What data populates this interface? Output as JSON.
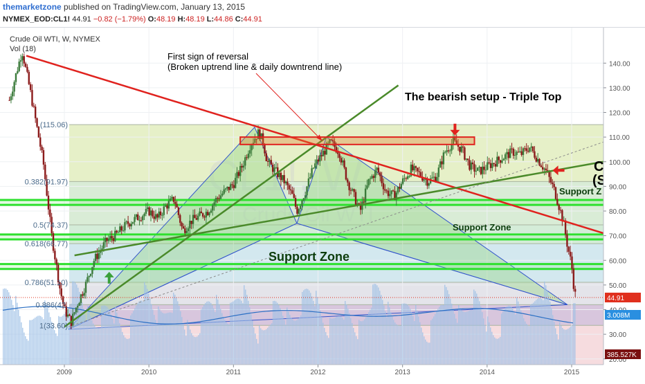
{
  "header": {
    "publisher": "themarketzone",
    "published_text": "published on TradingView.com, January 13, 2015",
    "symbol": "NYMEX_EOD:CL1!",
    "last": "44.91",
    "change": "−0.82 (−1.79%)",
    "open_label": "O:",
    "open": "48.19",
    "high_label": "H:",
    "high": "48.19",
    "low_label": "L:",
    "low": "44.86",
    "close_label": "C:",
    "close": "44.91",
    "chart_title": "Crude Oil WTI, W, NYMEX",
    "volume_label": "Vol (18)"
  },
  "colors": {
    "up": "#3a7a3a",
    "down": "#8b1a1a",
    "trend_red": "#e0221e",
    "trend_green": "#4a8a2a",
    "support_zone": "#2ee02e",
    "fib_blue": "#3355cc",
    "price_tag": "#e0301e",
    "volume_tag": "#2a8fe0",
    "volume_tag2": "#7a1010"
  },
  "chart_data": {
    "type": "candlestick",
    "title": "Crude Oil WTI, W, NYMEX",
    "x_axis": {
      "ticks": [
        "2009",
        "2010",
        "2011",
        "2012",
        "2013",
        "2014",
        "2015"
      ]
    },
    "y_axis": {
      "range": [
        14,
        147
      ],
      "ticks": [
        "20.00",
        "30.00",
        "40.00",
        "50.00",
        "60.00",
        "70.00",
        "80.00",
        "90.00",
        "100.00",
        "110.00",
        "120.00",
        "130.00",
        "140.00"
      ]
    },
    "price_path": [
      [
        2008.35,
        125
      ],
      [
        2008.5,
        145
      ],
      [
        2008.6,
        128
      ],
      [
        2008.75,
        100
      ],
      [
        2008.85,
        70
      ],
      [
        2008.95,
        48
      ],
      [
        2009.0,
        40
      ],
      [
        2009.08,
        35
      ],
      [
        2009.15,
        42
      ],
      [
        2009.25,
        50
      ],
      [
        2009.35,
        60
      ],
      [
        2009.5,
        68
      ],
      [
        2009.6,
        70
      ],
      [
        2009.75,
        75
      ],
      [
        2009.9,
        78
      ],
      [
        2010.0,
        80
      ],
      [
        2010.1,
        77
      ],
      [
        2010.2,
        82
      ],
      [
        2010.3,
        85
      ],
      [
        2010.4,
        72
      ],
      [
        2010.5,
        76
      ],
      [
        2010.6,
        78
      ],
      [
        2010.7,
        80
      ],
      [
        2010.8,
        85
      ],
      [
        2010.9,
        88
      ],
      [
        2011.0,
        91
      ],
      [
        2011.1,
        98
      ],
      [
        2011.2,
        107
      ],
      [
        2011.3,
        112
      ],
      [
        2011.35,
        108
      ],
      [
        2011.4,
        100
      ],
      [
        2011.5,
        96
      ],
      [
        2011.6,
        92
      ],
      [
        2011.7,
        86
      ],
      [
        2011.75,
        80
      ],
      [
        2011.85,
        88
      ],
      [
        2011.95,
        98
      ],
      [
        2012.05,
        103
      ],
      [
        2012.15,
        108
      ],
      [
        2012.25,
        104
      ],
      [
        2012.35,
        92
      ],
      [
        2012.45,
        84
      ],
      [
        2012.5,
        80
      ],
      [
        2012.6,
        92
      ],
      [
        2012.7,
        97
      ],
      [
        2012.8,
        88
      ],
      [
        2012.9,
        86
      ],
      [
        2013.0,
        92
      ],
      [
        2013.1,
        97
      ],
      [
        2013.2,
        95
      ],
      [
        2013.3,
        92
      ],
      [
        2013.4,
        94
      ],
      [
        2013.5,
        104
      ],
      [
        2013.6,
        108
      ],
      [
        2013.7,
        105
      ],
      [
        2013.8,
        98
      ],
      [
        2013.9,
        96
      ],
      [
        2014.0,
        98
      ],
      [
        2014.1,
        100
      ],
      [
        2014.2,
        102
      ],
      [
        2014.3,
        104
      ],
      [
        2014.4,
        103
      ],
      [
        2014.5,
        106
      ],
      [
        2014.6,
        101
      ],
      [
        2014.7,
        96
      ],
      [
        2014.8,
        88
      ],
      [
        2014.9,
        76
      ],
      [
        2014.95,
        66
      ],
      [
        2015.0,
        58
      ],
      [
        2015.03,
        48
      ],
      [
        2015.05,
        44.91
      ]
    ],
    "fib_levels": [
      {
        "label": "(115.06)",
        "value": 115.06
      },
      {
        "label": "0.382(91.97)",
        "value": 91.97
      },
      {
        "label": "0.5(74.37)",
        "value": 74.37
      },
      {
        "label": "0.618(66.77)",
        "value": 66.77
      },
      {
        "label": "0.786(51.10)",
        "value": 51.1
      },
      {
        "label": "0.886(42.",
        "value": 42
      },
      {
        "label": "1(33.60)",
        "value": 33.6
      }
    ],
    "support_zones": [
      82.5,
      84.5,
      68.5,
      70.5,
      56.5,
      58.5
    ],
    "annotations": [
      {
        "id": "reversal",
        "text": "First sign of reversal",
        "text2": "(Broken uptrend line & daily downtrend line)"
      },
      {
        "id": "triple-top",
        "text": "The bearish setup - Triple Top"
      },
      {
        "id": "support-zone-big",
        "text": "Support Zone"
      },
      {
        "id": "support-zone-mid",
        "text": "Support Zone"
      },
      {
        "id": "support-zone-right",
        "text": "Support Z"
      },
      {
        "id": "clipped",
        "text": "C"
      },
      {
        "id": "clipped2",
        "text": "(S"
      }
    ],
    "watermark": {
      "line1": "CL1!, W",
      "line2": "Crude Oil WTI"
    },
    "last_price_tag": "44.91",
    "volume_tag": "3.008M",
    "volume_tag2": "385.527K"
  }
}
